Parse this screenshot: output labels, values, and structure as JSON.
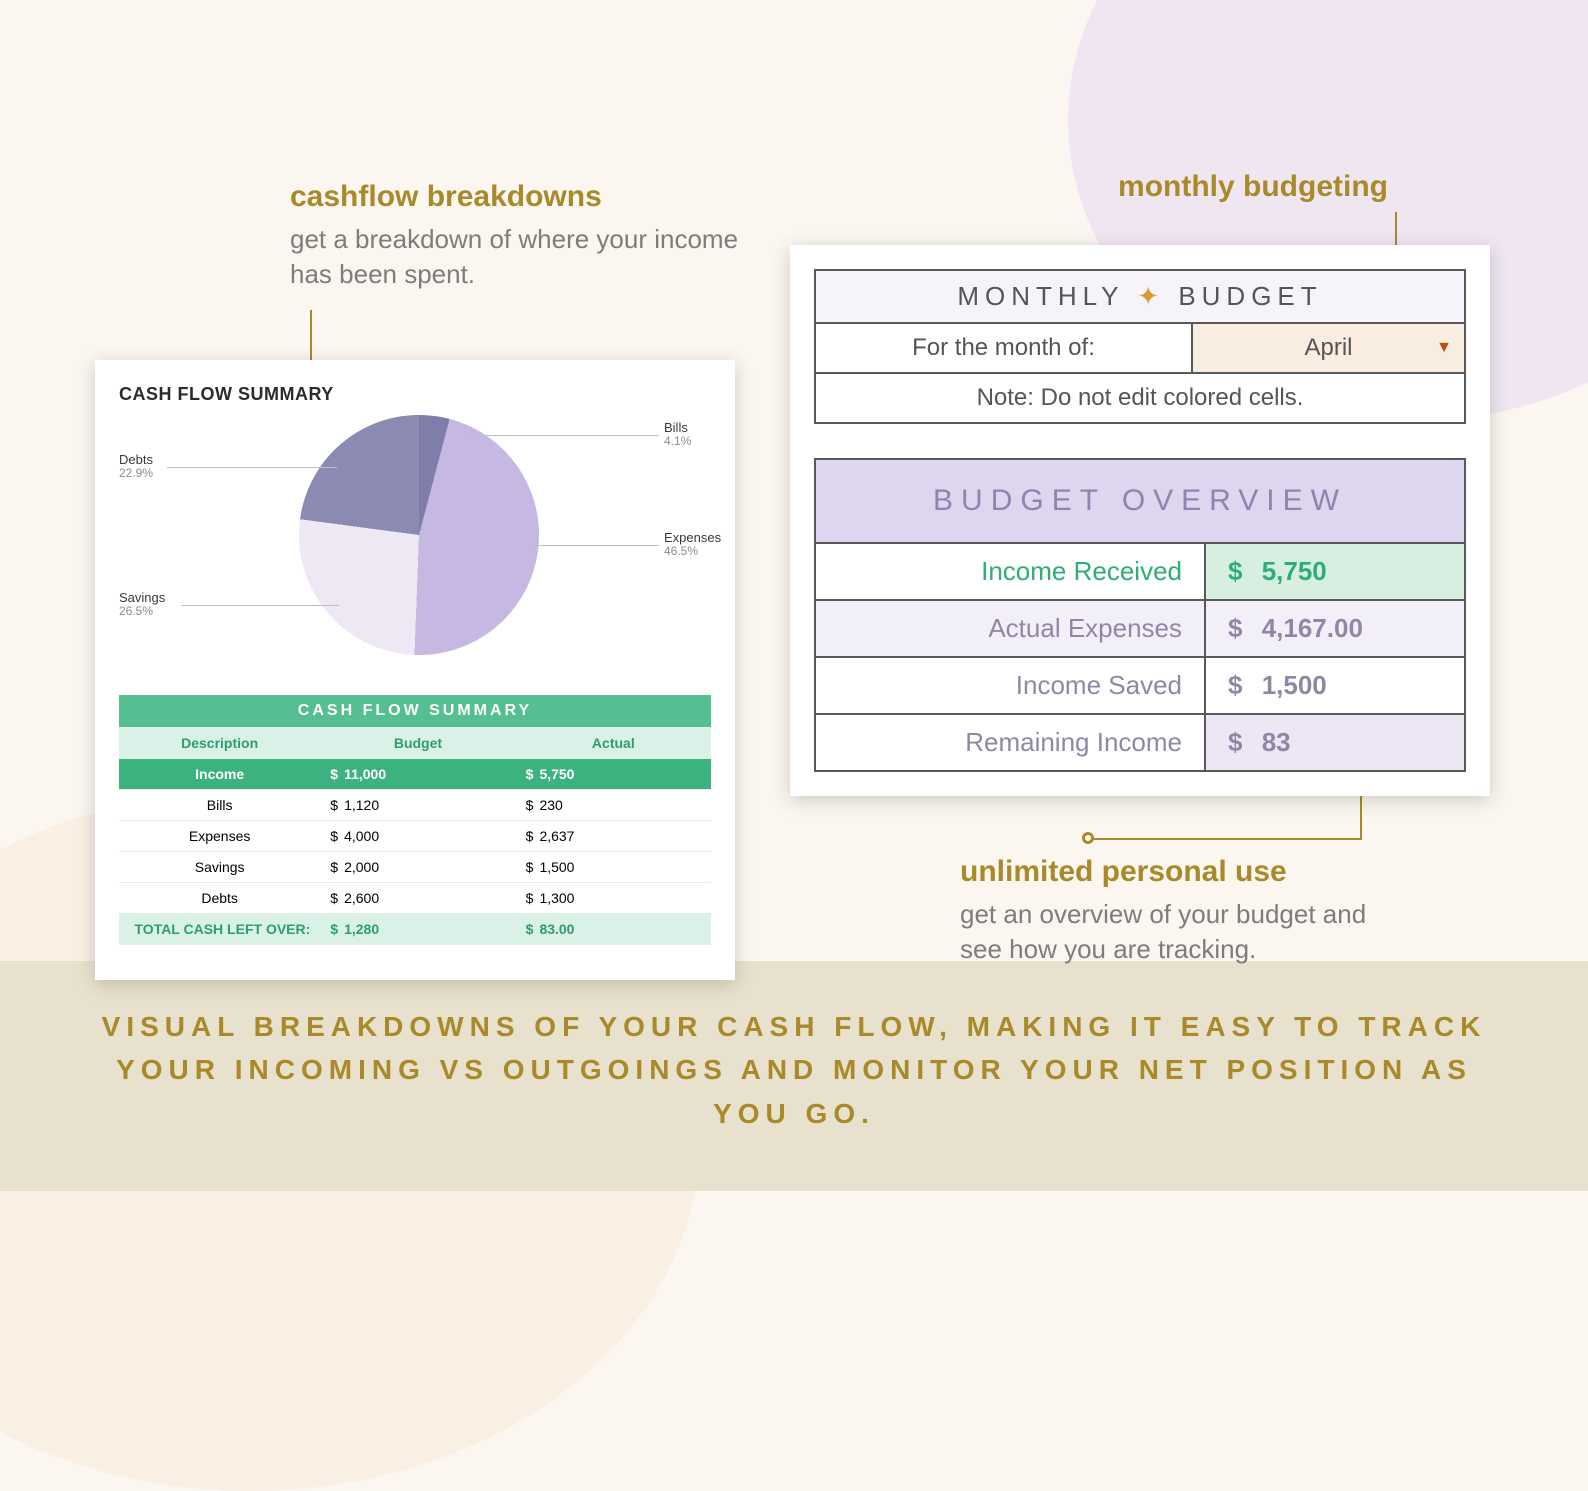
{
  "callouts": {
    "cashflow": {
      "title": "cashflow breakdowns",
      "body": "get a breakdown of where your income has been spent."
    },
    "monthly": {
      "title": "monthly budgeting"
    },
    "unlimited": {
      "title": "unlimited personal use",
      "body": "get an overview of your budget and see how you are tracking."
    }
  },
  "cashflow_panel": {
    "title": "CASH FLOW SUMMARY",
    "pie": {
      "type": "pie",
      "slices": [
        {
          "name": "Bills",
          "pct": 4.1,
          "color": "#7f7eab"
        },
        {
          "name": "Expenses",
          "pct": 46.5,
          "color": "#c6b7e3"
        },
        {
          "name": "Savings",
          "pct": 26.5,
          "color": "#eee7f4"
        },
        {
          "name": "Debts",
          "pct": 22.9,
          "color": "#8b8ab2"
        }
      ],
      "line_color": "#bfbfbf",
      "label_fontsize": 13
    },
    "summary_table": {
      "title": "CASH FLOW SUMMARY",
      "columns": [
        "Description",
        "Budget",
        "Actual"
      ],
      "income_row": {
        "label": "Income",
        "budget": "11,000",
        "actual": "5,750"
      },
      "rows": [
        {
          "label": "Bills",
          "budget": "1,120",
          "actual": "230"
        },
        {
          "label": "Expenses",
          "budget": "4,000",
          "actual": "2,637"
        },
        {
          "label": "Savings",
          "budget": "2,000",
          "actual": "1,500"
        },
        {
          "label": "Debts",
          "budget": "2,600",
          "actual": "1,300"
        }
      ],
      "total_row": {
        "label": "TOTAL CASH LEFT OVER:",
        "budget": "1,280",
        "actual": "83.00"
      },
      "currency": "$",
      "colors": {
        "header_bg": "#55bf92",
        "header_fg": "#ffffff",
        "sub_bg": "#d9f1e6",
        "sub_fg": "#2f9e6e",
        "income_bg": "#3cb27e",
        "total_bg": "#d9f1e6",
        "total_fg": "#2f9e6e"
      }
    }
  },
  "budget_panel": {
    "title_left": "MONTHLY",
    "title_right": "BUDGET",
    "month_label": "For the month of:",
    "month_value": "April",
    "note": "Note: Do not edit colored cells.",
    "overview": {
      "title": "BUDGET OVERVIEW",
      "rows": [
        {
          "label": "Income Received",
          "value": "5,750",
          "style": "green"
        },
        {
          "label": "Actual Expenses",
          "value": "4,167.00",
          "style": "shade"
        },
        {
          "label": "Income Saved",
          "value": "1,500",
          "style": "plain"
        },
        {
          "label": "Remaining Income",
          "value": "83",
          "style": "remain"
        }
      ],
      "currency": "$",
      "colors": {
        "head_bg": "#ded5ee",
        "head_fg": "#8f84ad",
        "green_fg": "#2fae74",
        "green_val_bg": "#d6efe1",
        "shade_bg": "#f3eff9",
        "remain_val_bg": "#ece6f5",
        "text_fg": "#9087a8",
        "border": "#595959"
      }
    }
  },
  "footer": "VISUAL BREAKDOWNS OF YOUR CASH FLOW, MAKING IT EASY TO TRACK YOUR INCOMING VS OUTGOINGS AND MONITOR YOUR NET POSITION AS YOU GO.",
  "palette": {
    "gold": "#a88a2a",
    "bg": "#fbf6ef",
    "blob_lilac": "#efe6f1",
    "blob_peach": "#faefe3",
    "band": "#e8e1cd"
  }
}
